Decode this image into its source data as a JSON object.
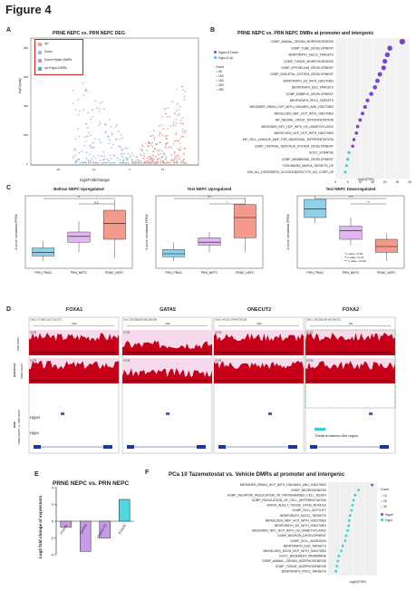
{
  "figure_title": "Figure 4",
  "panel_letters": {
    "a": "A",
    "b": "B",
    "c": "C",
    "d": "D",
    "e": "E",
    "f": "F"
  },
  "colors": {
    "up": "#e8a2a0",
    "down": "#9fb8e6",
    "down_hyper": "#c58fe0",
    "up_hypo": "#4db5a9",
    "hyper": "#7b44c8",
    "hypo": "#34d1d8",
    "track_red": "#c7001a"
  },
  "panel_a": {
    "title": "PRNE NEPC vs. PRN NEPC DEG",
    "xlabel": "log2FoldChange",
    "ylabel": "-log10(padj)",
    "xticks": [
      "-20",
      "-10",
      "0",
      "10"
    ],
    "yticks": [
      "0",
      "200",
      "400",
      "600",
      "800"
    ],
    "legend": [
      "Up",
      "Down",
      "Down+Hyper-DMRs",
      "Up+Hypo-DMRs"
    ]
  },
  "panel_b": {
    "title": "PRNE NEPC vs. PRN NEPC DMRs at promoter and intergenic",
    "xlabel": "-log10(FDR)",
    "xticks": [
      "0",
      "5",
      "10",
      "15",
      "20",
      "25",
      "30"
    ],
    "legend_group": [
      "Hyper & Down",
      "Hypo & Up"
    ],
    "size_title": "Count",
    "size_levels": [
      "50",
      "100",
      "150",
      "200",
      "250"
    ],
    "terms": [
      "GOBP_ANIMAL_ORGAN_MORPHOGENESIS",
      "GOBP_TUBE_DEVELOPMENT",
      "BENPORATH_SUZ12_TARGETS",
      "GOBP_TISSUE_MORPHOGENESIS",
      "GOBP_EPITHELIUM_DEVELOPMENT",
      "GOBP_SKELETAL_SYSTEM_DEVELOPMENT",
      "BENPORATH_ES_WITH_H3K27ME3",
      "BENPORATH_EED_TARGETS",
      "GOBP_EMBRYO_DEVELOPMENT",
      "BENPORATH_PRC2_TARGETS",
      "MEISSNER_BRAIN_HCP_WITH_H3K4ME3_AND_H3K27ME3",
      "MIKKELSEN_MEF_HCP_WITH_H3K27ME3",
      "MP_NEURAL_CREST_DIFFERENTIATION",
      "MEISSNER_NPC_HCP_WITH_H3_UNMETHYLATED",
      "MIKKELSEN_NCP_HCP_WITH_H3K27ME3",
      "MP_CELL_LINEAGE_MAP_FOR_NEURONAL_DIFFERENTIATION",
      "GOBP_CENTRAL_NERVOUS_SYSTEM_DEVELOPMENT",
      "GOCC_SYNAPSE",
      "GOBP_MEMBRANE_DEVELOPMENT",
      "YOSHIMURA_MAPK8_TARGETS_UP",
      "KIM_ALL_DISORDERS_OLIGODENDROCYTE_NO_CORR_UP"
    ],
    "values": [
      27,
      22,
      21,
      20,
      19.5,
      18,
      17,
      16,
      14.5,
      13,
      12,
      11,
      10,
      9,
      8.5,
      7.5,
      7,
      5.5,
      5,
      4.5,
      4
    ],
    "hypo_flags": [
      0,
      0,
      0,
      0,
      0,
      0,
      0,
      0,
      0,
      0,
      0,
      0,
      0,
      0,
      0,
      0,
      0,
      1,
      1,
      1,
      1
    ]
  },
  "panel_c": {
    "plots": [
      {
        "title": "Beltran NEPC Upregulated",
        "ylabel": "Z-score normalized FPKM",
        "cats": [
          "PRN_PRAD",
          "PRN_NEPC",
          "PRNE_NEPC"
        ],
        "sig": [
          "**",
          "n.s."
        ]
      },
      {
        "title": "Tesi NEPC Upregulated",
        "ylabel": "Z-score normalized FPKM",
        "cats": [
          "PRN_PRAD",
          "PRN_NEPC",
          "PRNE_NEPC"
        ],
        "sig": [
          "***",
          "*"
        ]
      },
      {
        "title": "Tesi NEPC Downregulated",
        "ylabel": "Z-score normalized FPKM",
        "cats": [
          "PRN_PRAD",
          "PRN_NEPC",
          "PRNE_NEPC"
        ],
        "sig": [
          "***",
          "**"
        ]
      }
    ],
    "pvalues": [
      "* p value <0.05",
      "** p value <0.01",
      "*** p value <0.001"
    ]
  },
  "panel_d": {
    "genes": [
      "FOXA1",
      "GATA5",
      "ONECUT2",
      "FOXA2"
    ],
    "coords": [
      "Chr12: 57,066,113-57,201,072",
      "Chr2: 185,298,809-185,238,008",
      "Chr13: 84,311,678-84,278,258",
      "Chr11: 145,258,209-145,364,312"
    ],
    "scales": [
      "10kb",
      "10kb",
      "10kb",
      "4kb"
    ],
    "range_label": "[0-20]",
    "track_labels": [
      "H3K27me3",
      "PRN NEPC",
      "PRNE NEPC",
      "DMR",
      "PRNE NEPC vs. PRN NEPC"
    ],
    "dmr_rows": [
      "Hyper",
      "Hypo"
    ],
    "annotation": "Distal enhancer-like region"
  },
  "panel_e": {
    "title": "PRNE NEPC vs. PRN NEPC",
    "ylabel": "Log2 fold change of expression",
    "yticks": [
      "-4",
      "-2",
      "0",
      "2",
      "4"
    ]
  },
  "chart_data": {
    "type": "bar",
    "title": "PRNE NEPC vs. PRN NEPC",
    "categories": [
      "FOXA1",
      "GATA5",
      "ONECUT2",
      "FOXA2"
    ],
    "values": [
      -0.7,
      -3.6,
      -2.0,
      2.6
    ],
    "ylabel": "Log2 fold change of expression",
    "ylim": [
      -4,
      4
    ]
  },
  "panel_f": {
    "title": "PCa 10 Tazemetostat vs. Vehicle DMRs at promoter and intergenic",
    "xlabel": "-log10(FDR)",
    "legend_group": [
      "Hyper",
      "Hypo"
    ],
    "size_title": "Count",
    "size_levels": [
      "10",
      "20",
      "30"
    ],
    "terms": [
      "MEISSNER_BRAIN_HCP_WITH_H3K4ME3_AND_H3K27ME3",
      "GOBP_NEUROGENESIS",
      "GOBP_NEGATIVE_REGULATION_OF_PROGRAMMED_CELL_DEATH",
      "GOBP_REGULATION_OF_CELL_DIFFERENTIATION",
      "WONG_ADULT_TISSUE_STEM_MODULE",
      "GOBP_CELL_MOTILITY",
      "BENPORATH_SUZ12_TARGETS",
      "MIKKELSEN_MEF_HCP_WITH_H3K27ME3",
      "BENPORATH_ES_WITH_H3K27ME3",
      "MEISSNER_NPC_HCP_WITH_H3_UNMETHYLATED",
      "GOBP_NEURON_DEVELOPMENT",
      "GOBP_CELL_ADHESION",
      "BENPORATH_EED_TARGETS",
      "MIKKELSEN_MCV6_HCP_WITH_H3K27ME3",
      "GOCC_BASEMENT_MEMBRANE",
      "GOBP_ANIMAL_ORGAN_MORPHOGENESIS",
      "GOBP_TISSUE_MORPHOGENESIS",
      "BENPORATH_PRC2_TARGETS"
    ],
    "values": [
      0.9,
      0.62,
      0.55,
      0.52,
      0.5,
      0.48,
      0.45,
      0.43,
      0.42,
      0.4,
      0.37,
      0.35,
      0.3,
      0.27,
      0.22,
      0.2,
      0.18,
      0.16
    ],
    "hypo_flags": [
      0,
      1,
      1,
      1,
      1,
      1,
      1,
      1,
      1,
      1,
      1,
      1,
      1,
      1,
      1,
      1,
      1,
      1
    ]
  }
}
